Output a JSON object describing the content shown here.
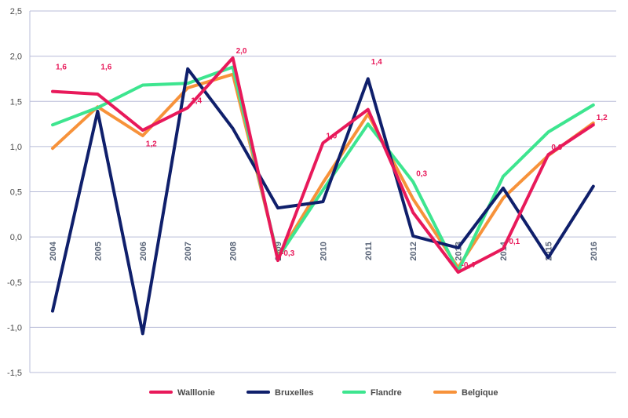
{
  "chart_data": {
    "type": "line",
    "x": [
      "2004",
      "2005",
      "2006",
      "2007",
      "2008",
      "2009",
      "2010",
      "2011",
      "2012",
      "2013",
      "2014",
      "2015",
      "2016"
    ],
    "ylim": [
      -1.5,
      2.5
    ],
    "yticks": [
      "-1,5",
      "-1,0",
      "-0,5",
      "0,0",
      "0,5",
      "1,0",
      "1,5",
      "2,0",
      "2,5"
    ],
    "ytick_values": [
      -1.5,
      -1.0,
      -0.5,
      0.0,
      0.5,
      1.0,
      1.5,
      2.0,
      2.5
    ],
    "grid": true,
    "legend_position": "bottom",
    "series": [
      {
        "name": "Belgique",
        "color": "#f7923a",
        "values": [
          0.98,
          1.44,
          1.12,
          1.65,
          1.8,
          -0.22,
          0.6,
          1.36,
          0.42,
          -0.34,
          0.43,
          0.9,
          1.26
        ]
      },
      {
        "name": "Flandre",
        "color": "#3de58f",
        "values": [
          1.24,
          1.43,
          1.68,
          1.7,
          1.88,
          -0.23,
          0.52,
          1.25,
          0.61,
          -0.38,
          0.67,
          1.16,
          1.46
        ]
      },
      {
        "name": "Bruxelles",
        "color": "#0f1f6b",
        "values": [
          -0.82,
          1.39,
          -1.07,
          1.86,
          1.2,
          0.32,
          0.39,
          1.75,
          0.01,
          -0.12,
          0.54,
          -0.23,
          0.56
        ]
      },
      {
        "name": "Walllonie",
        "color": "#e8195a",
        "values": [
          1.61,
          1.58,
          1.18,
          1.43,
          1.98,
          -0.26,
          1.04,
          1.41,
          0.27,
          -0.39,
          -0.13,
          0.91,
          1.24
        ]
      }
    ],
    "legend_order": [
      "Walllonie",
      "Bruxelles",
      "Flandre",
      "Belgique"
    ],
    "data_labels": [
      {
        "text": "1,6",
        "x": "2004",
        "y": 1.8
      },
      {
        "text": "1,6",
        "x": "2005",
        "y": 1.8
      },
      {
        "text": "1,2",
        "x": "2006",
        "y": 0.95
      },
      {
        "text": "1,4",
        "x": "2007",
        "y": 1.43
      },
      {
        "text": "2,0",
        "x": "2008",
        "y": 1.98
      },
      {
        "text": "-0,3",
        "x": "2009",
        "y": -0.26
      },
      {
        "text": "1,0",
        "x": "2010",
        "y": 1.04
      },
      {
        "text": "1,4",
        "x": "2011",
        "y": 1.86
      },
      {
        "text": "0,3",
        "x": "2012",
        "y": 0.62
      },
      {
        "text": "-0,4",
        "x": "2013",
        "y": -0.39
      },
      {
        "text": "-0,1",
        "x": "2014",
        "y": -0.13
      },
      {
        "text": "0,9",
        "x": "2015",
        "y": 0.91
      },
      {
        "text": "1,2",
        "x": "2016",
        "y": 1.24
      }
    ]
  }
}
